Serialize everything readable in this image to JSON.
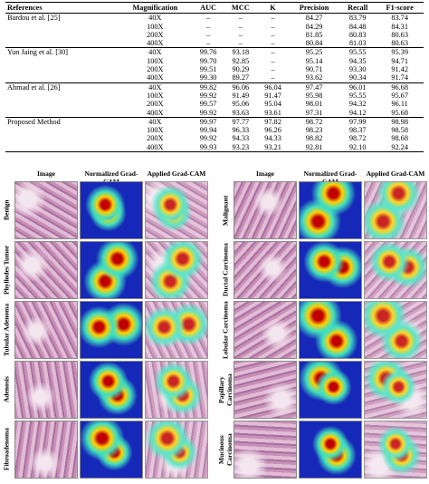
{
  "table": {
    "columns": [
      "References",
      "Magnification",
      "AUC",
      "MCC",
      "K",
      "Precision",
      "Recall",
      "F1-score"
    ],
    "groups": [
      {
        "reference": "Bardou et al. [25]",
        "rows": [
          [
            "40X",
            "–",
            "–",
            "–",
            "84.27",
            "83.79",
            "83.74"
          ],
          [
            "100X",
            "–",
            "–",
            "–",
            "84.29",
            "84.48",
            "84.31"
          ],
          [
            "200X",
            "–",
            "–",
            "–",
            "81.85",
            "80.83",
            "80.63"
          ],
          [
            "400X",
            "–",
            "–",
            "–",
            "80.84",
            "81.03",
            "80.63"
          ]
        ]
      },
      {
        "reference": "Yun Jaing et al. [30]",
        "rows": [
          [
            "40X",
            "99.76",
            "93.18",
            "–",
            "95.25",
            "95.55",
            "95.39"
          ],
          [
            "100X",
            "99.70",
            "92.85",
            "–",
            "95.14",
            "94.35",
            "94.71"
          ],
          [
            "200X",
            "99.51",
            "90.29",
            "–",
            "90.71",
            "93.30",
            "91.42"
          ],
          [
            "400X",
            "99.30",
            "89.27",
            "–",
            "93.62",
            "90.34",
            "91.74"
          ]
        ]
      },
      {
        "reference": "Ahmad et al. [26]",
        "rows": [
          [
            "40X",
            "99.82",
            "96.06",
            "96.04",
            "97.47",
            "96.01",
            "96.68"
          ],
          [
            "100X",
            "99.92",
            "91.49",
            "91.47",
            "95.98",
            "95.55",
            "95.67"
          ],
          [
            "200X",
            "99.57",
            "95.06",
            "95.04",
            "98.01",
            "94.32",
            "96.11"
          ],
          [
            "400X",
            "99.92",
            "93.63",
            "93.61",
            "97.31",
            "94.12",
            "95.68"
          ]
        ]
      },
      {
        "reference": "Proposed Method",
        "rows": [
          [
            "40X",
            "99.97",
            "97.77",
            "97.82",
            "98.72",
            "97.99",
            "98.98"
          ],
          [
            "100X",
            "99.94",
            "96.33",
            "96.26",
            "98.23",
            "98.37",
            "98.58"
          ],
          [
            "200X",
            "99.92",
            "94.33",
            "94.33",
            "98.82",
            "98.72",
            "98.68"
          ],
          [
            "400X",
            "99.93",
            "93.23",
            "93.21",
            "92.81",
            "92.10",
            "92.24"
          ]
        ]
      }
    ]
  },
  "figure": {
    "panels": [
      {
        "headers": [
          "Image",
          "Normalized Grad-CAM",
          "Applied Grad-CAM"
        ],
        "rows": [
          "Benign",
          "Phyllodes Tumor",
          "Tubular Adenoma",
          "Adenosis",
          "Fibroadenoma"
        ]
      },
      {
        "headers": [
          "Image",
          "Normalized Grad-CAM",
          "Applied Grad-CAM"
        ],
        "rows": [
          "Malignant",
          "Ductal Carcinoma",
          "Lobular Carcinoma",
          "Papillary Carcinoma",
          "Mucinous Carcinoma"
        ]
      }
    ]
  }
}
